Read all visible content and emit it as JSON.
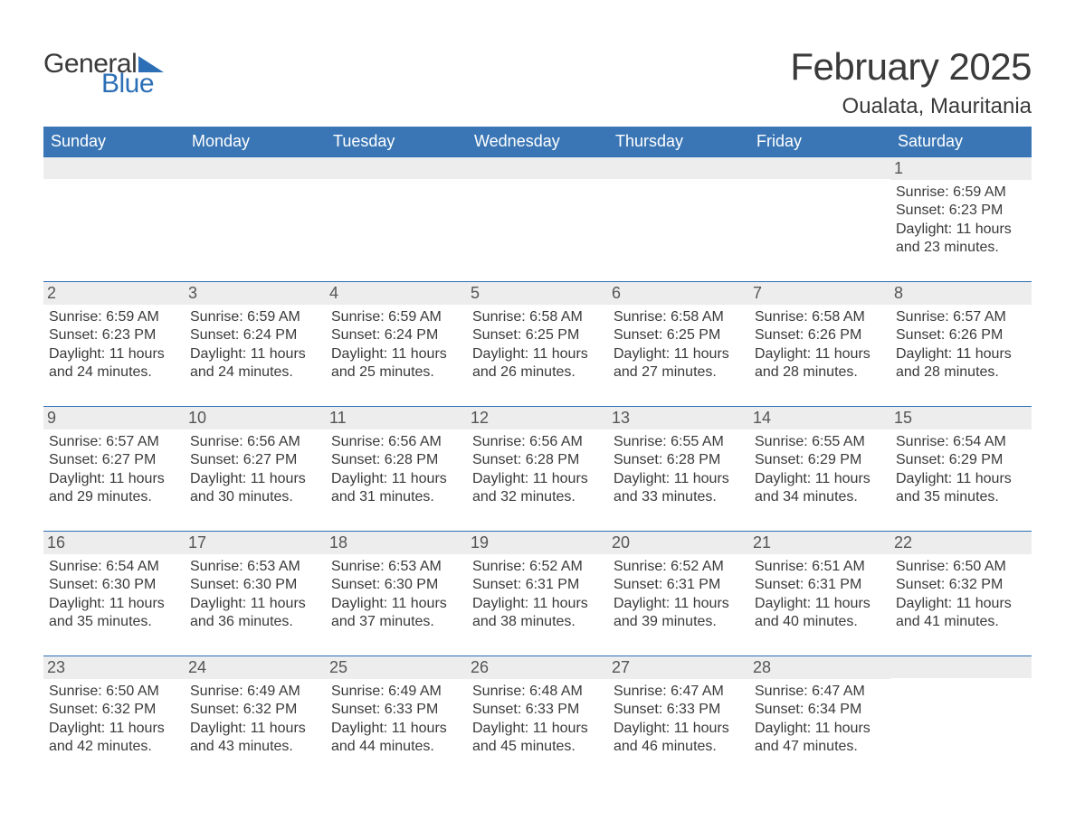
{
  "logo": {
    "word1": "General",
    "word2": "Blue",
    "tri_color": "#2d6fb6"
  },
  "title": "February 2025",
  "location": "Oualata, Mauritania",
  "colors": {
    "header_bg": "#3a76b5",
    "header_text": "#ffffff",
    "daynum_bg": "#ededed",
    "border": "#2d6fb6",
    "body_text": "#3a3a3a",
    "background": "#ffffff"
  },
  "typography": {
    "title_fontsize": 42,
    "location_fontsize": 24,
    "dow_fontsize": 18,
    "daynum_fontsize": 18,
    "body_fontsize": 16
  },
  "days_of_week": [
    "Sunday",
    "Monday",
    "Tuesday",
    "Wednesday",
    "Thursday",
    "Friday",
    "Saturday"
  ],
  "weeks": [
    [
      null,
      null,
      null,
      null,
      null,
      null,
      {
        "n": "1",
        "sunrise": "Sunrise: 6:59 AM",
        "sunset": "Sunset: 6:23 PM",
        "d1": "Daylight: 11 hours",
        "d2": "and 23 minutes."
      }
    ],
    [
      {
        "n": "2",
        "sunrise": "Sunrise: 6:59 AM",
        "sunset": "Sunset: 6:23 PM",
        "d1": "Daylight: 11 hours",
        "d2": "and 24 minutes."
      },
      {
        "n": "3",
        "sunrise": "Sunrise: 6:59 AM",
        "sunset": "Sunset: 6:24 PM",
        "d1": "Daylight: 11 hours",
        "d2": "and 24 minutes."
      },
      {
        "n": "4",
        "sunrise": "Sunrise: 6:59 AM",
        "sunset": "Sunset: 6:24 PM",
        "d1": "Daylight: 11 hours",
        "d2": "and 25 minutes."
      },
      {
        "n": "5",
        "sunrise": "Sunrise: 6:58 AM",
        "sunset": "Sunset: 6:25 PM",
        "d1": "Daylight: 11 hours",
        "d2": "and 26 minutes."
      },
      {
        "n": "6",
        "sunrise": "Sunrise: 6:58 AM",
        "sunset": "Sunset: 6:25 PM",
        "d1": "Daylight: 11 hours",
        "d2": "and 27 minutes."
      },
      {
        "n": "7",
        "sunrise": "Sunrise: 6:58 AM",
        "sunset": "Sunset: 6:26 PM",
        "d1": "Daylight: 11 hours",
        "d2": "and 28 minutes."
      },
      {
        "n": "8",
        "sunrise": "Sunrise: 6:57 AM",
        "sunset": "Sunset: 6:26 PM",
        "d1": "Daylight: 11 hours",
        "d2": "and 28 minutes."
      }
    ],
    [
      {
        "n": "9",
        "sunrise": "Sunrise: 6:57 AM",
        "sunset": "Sunset: 6:27 PM",
        "d1": "Daylight: 11 hours",
        "d2": "and 29 minutes."
      },
      {
        "n": "10",
        "sunrise": "Sunrise: 6:56 AM",
        "sunset": "Sunset: 6:27 PM",
        "d1": "Daylight: 11 hours",
        "d2": "and 30 minutes."
      },
      {
        "n": "11",
        "sunrise": "Sunrise: 6:56 AM",
        "sunset": "Sunset: 6:28 PM",
        "d1": "Daylight: 11 hours",
        "d2": "and 31 minutes."
      },
      {
        "n": "12",
        "sunrise": "Sunrise: 6:56 AM",
        "sunset": "Sunset: 6:28 PM",
        "d1": "Daylight: 11 hours",
        "d2": "and 32 minutes."
      },
      {
        "n": "13",
        "sunrise": "Sunrise: 6:55 AM",
        "sunset": "Sunset: 6:28 PM",
        "d1": "Daylight: 11 hours",
        "d2": "and 33 minutes."
      },
      {
        "n": "14",
        "sunrise": "Sunrise: 6:55 AM",
        "sunset": "Sunset: 6:29 PM",
        "d1": "Daylight: 11 hours",
        "d2": "and 34 minutes."
      },
      {
        "n": "15",
        "sunrise": "Sunrise: 6:54 AM",
        "sunset": "Sunset: 6:29 PM",
        "d1": "Daylight: 11 hours",
        "d2": "and 35 minutes."
      }
    ],
    [
      {
        "n": "16",
        "sunrise": "Sunrise: 6:54 AM",
        "sunset": "Sunset: 6:30 PM",
        "d1": "Daylight: 11 hours",
        "d2": "and 35 minutes."
      },
      {
        "n": "17",
        "sunrise": "Sunrise: 6:53 AM",
        "sunset": "Sunset: 6:30 PM",
        "d1": "Daylight: 11 hours",
        "d2": "and 36 minutes."
      },
      {
        "n": "18",
        "sunrise": "Sunrise: 6:53 AM",
        "sunset": "Sunset: 6:30 PM",
        "d1": "Daylight: 11 hours",
        "d2": "and 37 minutes."
      },
      {
        "n": "19",
        "sunrise": "Sunrise: 6:52 AM",
        "sunset": "Sunset: 6:31 PM",
        "d1": "Daylight: 11 hours",
        "d2": "and 38 minutes."
      },
      {
        "n": "20",
        "sunrise": "Sunrise: 6:52 AM",
        "sunset": "Sunset: 6:31 PM",
        "d1": "Daylight: 11 hours",
        "d2": "and 39 minutes."
      },
      {
        "n": "21",
        "sunrise": "Sunrise: 6:51 AM",
        "sunset": "Sunset: 6:31 PM",
        "d1": "Daylight: 11 hours",
        "d2": "and 40 minutes."
      },
      {
        "n": "22",
        "sunrise": "Sunrise: 6:50 AM",
        "sunset": "Sunset: 6:32 PM",
        "d1": "Daylight: 11 hours",
        "d2": "and 41 minutes."
      }
    ],
    [
      {
        "n": "23",
        "sunrise": "Sunrise: 6:50 AM",
        "sunset": "Sunset: 6:32 PM",
        "d1": "Daylight: 11 hours",
        "d2": "and 42 minutes."
      },
      {
        "n": "24",
        "sunrise": "Sunrise: 6:49 AM",
        "sunset": "Sunset: 6:32 PM",
        "d1": "Daylight: 11 hours",
        "d2": "and 43 minutes."
      },
      {
        "n": "25",
        "sunrise": "Sunrise: 6:49 AM",
        "sunset": "Sunset: 6:33 PM",
        "d1": "Daylight: 11 hours",
        "d2": "and 44 minutes."
      },
      {
        "n": "26",
        "sunrise": "Sunrise: 6:48 AM",
        "sunset": "Sunset: 6:33 PM",
        "d1": "Daylight: 11 hours",
        "d2": "and 45 minutes."
      },
      {
        "n": "27",
        "sunrise": "Sunrise: 6:47 AM",
        "sunset": "Sunset: 6:33 PM",
        "d1": "Daylight: 11 hours",
        "d2": "and 46 minutes."
      },
      {
        "n": "28",
        "sunrise": "Sunrise: 6:47 AM",
        "sunset": "Sunset: 6:34 PM",
        "d1": "Daylight: 11 hours",
        "d2": "and 47 minutes."
      },
      null
    ]
  ]
}
